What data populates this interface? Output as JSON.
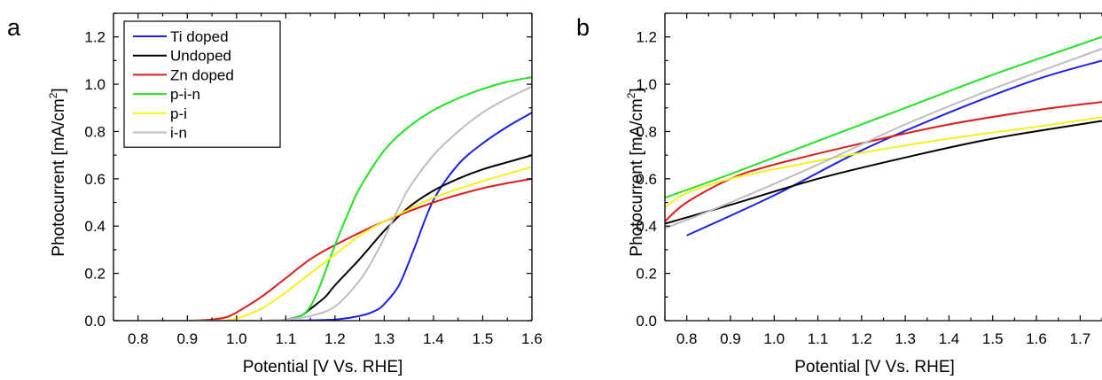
{
  "chart_data": [
    {
      "panel_label": "a",
      "type": "line",
      "xlabel": "Potential [V Vs. RHE]",
      "ylabel": "Photocurrent [mA/cm",
      "ylabel_sup": "2",
      "ylabel_close": "]",
      "xlim": [
        0.75,
        1.6
      ],
      "ylim": [
        0.0,
        1.3
      ],
      "xticks": [
        "0.8",
        "0.9",
        "1.0",
        "1.1",
        "1.2",
        "1.3",
        "1.4",
        "1.5",
        "1.6"
      ],
      "yticks": [
        "0.0",
        "0.2",
        "0.4",
        "0.6",
        "0.8",
        "1.0",
        "1.2"
      ],
      "legend_position": "top-left",
      "series": [
        {
          "name": "Ti doped",
          "color": "#1a22e0",
          "x": [
            0.75,
            1.0,
            1.1,
            1.2,
            1.25,
            1.28,
            1.3,
            1.33,
            1.36,
            1.4,
            1.45,
            1.5,
            1.55,
            1.6
          ],
          "y": [
            0.0,
            0.0,
            0.0,
            0.005,
            0.02,
            0.04,
            0.07,
            0.15,
            0.3,
            0.51,
            0.66,
            0.75,
            0.82,
            0.88
          ]
        },
        {
          "name": "Undoped",
          "color": "#000000",
          "x": [
            0.75,
            1.05,
            1.1,
            1.13,
            1.15,
            1.18,
            1.2,
            1.25,
            1.3,
            1.35,
            1.4,
            1.45,
            1.5,
            1.55,
            1.6
          ],
          "y": [
            0.0,
            0.0,
            0.005,
            0.02,
            0.05,
            0.1,
            0.15,
            0.26,
            0.38,
            0.48,
            0.55,
            0.6,
            0.64,
            0.67,
            0.7
          ]
        },
        {
          "name": "Zn doped",
          "color": "#dd1c1c",
          "x": [
            0.75,
            0.9,
            0.95,
            0.98,
            1.0,
            1.05,
            1.1,
            1.15,
            1.2,
            1.3,
            1.4,
            1.5,
            1.6
          ],
          "y": [
            0.0,
            0.0,
            0.005,
            0.015,
            0.035,
            0.1,
            0.18,
            0.26,
            0.32,
            0.42,
            0.5,
            0.56,
            0.6
          ]
        },
        {
          "name": "p-i-n",
          "color": "#22e022",
          "x": [
            0.75,
            1.05,
            1.1,
            1.13,
            1.15,
            1.17,
            1.2,
            1.23,
            1.25,
            1.3,
            1.35,
            1.4,
            1.45,
            1.5,
            1.55,
            1.6
          ],
          "y": [
            0.0,
            0.0,
            0.005,
            0.02,
            0.06,
            0.15,
            0.32,
            0.47,
            0.56,
            0.72,
            0.82,
            0.89,
            0.94,
            0.98,
            1.01,
            1.03
          ]
        },
        {
          "name": "p-i",
          "color": "#f2f21e",
          "x": [
            0.75,
            0.95,
            1.0,
            1.05,
            1.1,
            1.15,
            1.2,
            1.25,
            1.3,
            1.35,
            1.4,
            1.5,
            1.6
          ],
          "y": [
            0.0,
            0.0,
            0.01,
            0.05,
            0.12,
            0.2,
            0.28,
            0.36,
            0.42,
            0.47,
            0.52,
            0.59,
            0.65
          ]
        },
        {
          "name": "i-n",
          "color": "#bdbdbd",
          "x": [
            0.75,
            1.05,
            1.1,
            1.15,
            1.2,
            1.25,
            1.28,
            1.3,
            1.33,
            1.35,
            1.4,
            1.45,
            1.5,
            1.55,
            1.6
          ],
          "y": [
            0.0,
            0.0,
            0.005,
            0.02,
            0.06,
            0.17,
            0.27,
            0.35,
            0.48,
            0.56,
            0.7,
            0.8,
            0.88,
            0.94,
            0.99
          ]
        }
      ]
    },
    {
      "panel_label": "b",
      "type": "line",
      "xlabel": "Potential [V Vs. RHE]",
      "ylabel": "Photocurrent [mA/cm",
      "ylabel_sup": "2",
      "ylabel_close": "]",
      "xlim": [
        0.75,
        1.75
      ],
      "ylim": [
        0.0,
        1.3
      ],
      "xticks": [
        "0.8",
        "0.9",
        "1.0",
        "1.1",
        "1.2",
        "1.3",
        "1.4",
        "1.5",
        "1.6",
        "1.7"
      ],
      "yticks": [
        "0.0",
        "0.2",
        "0.4",
        "0.6",
        "0.8",
        "1.0",
        "1.2"
      ],
      "series": [
        {
          "name": "Ti doped",
          "color": "#1a22e0",
          "x": [
            0.8,
            1.0,
            1.2,
            1.4,
            1.6,
            1.75
          ],
          "y": [
            0.36,
            0.53,
            0.72,
            0.88,
            1.02,
            1.1
          ]
        },
        {
          "name": "Undoped",
          "color": "#000000",
          "x": [
            0.75,
            0.9,
            1.1,
            1.3,
            1.5,
            1.75
          ],
          "y": [
            0.41,
            0.49,
            0.6,
            0.69,
            0.77,
            0.845
          ]
        },
        {
          "name": "Zn doped",
          "color": "#dd1c1c",
          "x": [
            0.75,
            0.8,
            0.9,
            1.0,
            1.2,
            1.4,
            1.6,
            1.75
          ],
          "y": [
            0.42,
            0.5,
            0.6,
            0.66,
            0.75,
            0.83,
            0.89,
            0.925
          ]
        },
        {
          "name": "p-i-n",
          "color": "#22e022",
          "x": [
            0.75,
            0.9,
            1.1,
            1.3,
            1.5,
            1.75
          ],
          "y": [
            0.52,
            0.62,
            0.76,
            0.9,
            1.04,
            1.2
          ]
        },
        {
          "name": "p-i",
          "color": "#f2f21e",
          "x": [
            0.75,
            0.8,
            0.9,
            1.0,
            1.2,
            1.4,
            1.6,
            1.75
          ],
          "y": [
            0.48,
            0.54,
            0.6,
            0.64,
            0.71,
            0.77,
            0.82,
            0.86
          ]
        },
        {
          "name": "i-n",
          "color": "#bdbdbd",
          "x": [
            0.75,
            0.9,
            1.1,
            1.3,
            1.5,
            1.75
          ],
          "y": [
            0.39,
            0.5,
            0.66,
            0.83,
            0.98,
            1.15
          ]
        }
      ]
    }
  ]
}
